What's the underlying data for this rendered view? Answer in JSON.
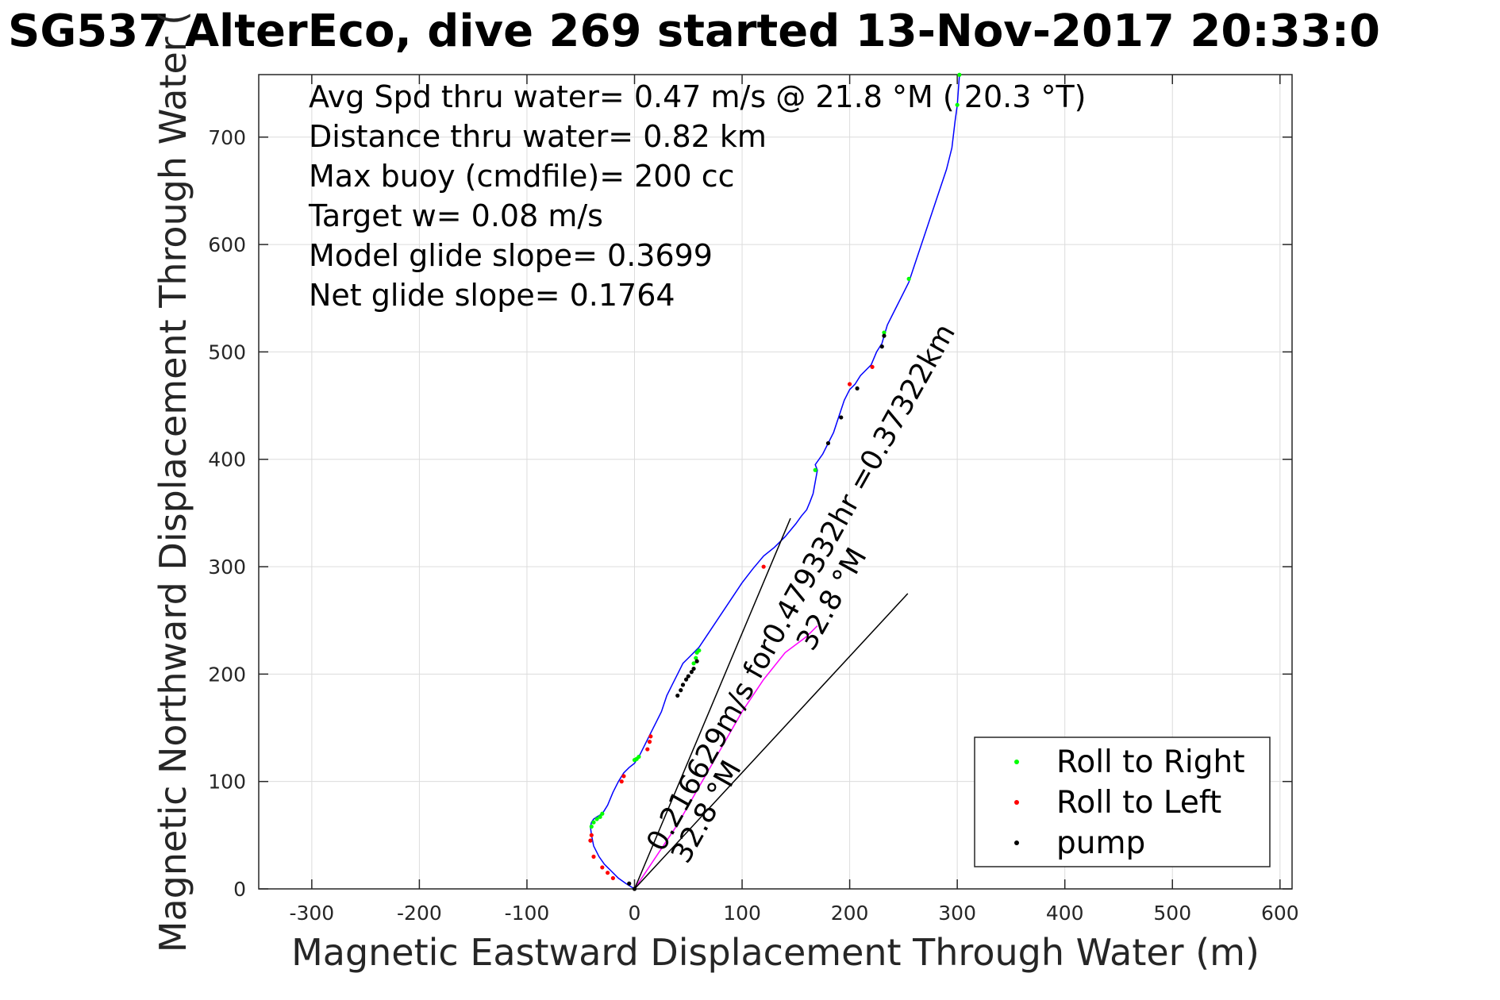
{
  "chart_data": {
    "type": "line",
    "title": "SG537 AlterEco, dive 269 started 13-Nov-2017 20:33:0",
    "xlabel": "Magnetic Eastward Displacement Through Water (m)",
    "ylabel": "Magnetic Northward Displacement Through Water (",
    "xlim": [
      -350,
      612
    ],
    "ylim": [
      0,
      758
    ],
    "xticks": [
      -300,
      -200,
      -100,
      0,
      100,
      200,
      300,
      400,
      500,
      600
    ],
    "yticks": [
      0,
      100,
      200,
      300,
      400,
      500,
      600,
      700
    ],
    "grid": true,
    "legend_position": "bottom-right",
    "colors": {
      "track": "#0000ff",
      "roll_right": "#00ff00",
      "roll_left": "#ff0000",
      "pump": "#000000",
      "overlay": "#ff00ff",
      "axes": "#262626",
      "grid": "#dcdcdc"
    },
    "annotations": [
      "Avg Spd thru water=  0.47 m/s @  21.8 °M ( 20.3 °T)",
      "Distance thru water=  0.82 km",
      "Max buoy (cmdfile)= 200 cc",
      "Target w= 0.08 m/s",
      "Model glide slope= 0.3699",
      "Net glide slope= 0.1764"
    ],
    "current_labels": [
      {
        "text": "0.216629m/s for0.479332hr =0.37322km"
      },
      {
        "text": "32.8 °M"
      },
      {
        "text": "32.8 °M"
      }
    ],
    "series": [
      {
        "name": "track",
        "x": [
          0,
          -8,
          -15,
          -22,
          -28,
          -33,
          -38,
          -40,
          -41,
          -40,
          -38,
          -35,
          -30,
          -28,
          -25,
          -20,
          -15,
          -10,
          -5,
          0,
          5,
          10,
          15,
          20,
          25,
          30,
          35,
          40,
          45,
          50,
          55,
          60,
          70,
          80,
          90,
          100,
          110,
          120,
          130,
          140,
          150,
          155,
          160,
          163,
          166,
          170,
          168,
          175,
          180,
          185,
          190,
          195,
          200,
          205,
          210,
          220,
          225,
          230,
          232,
          235,
          240,
          245,
          255,
          260,
          270,
          280,
          290,
          295,
          298,
          300,
          302
        ],
        "y": [
          0,
          5,
          10,
          17,
          23,
          30,
          40,
          50,
          58,
          62,
          65,
          67,
          70,
          73,
          78,
          90,
          100,
          108,
          113,
          117,
          125,
          135,
          145,
          155,
          165,
          180,
          190,
          200,
          210,
          215,
          220,
          225,
          240,
          255,
          270,
          285,
          298,
          310,
          318,
          328,
          340,
          347,
          353,
          360,
          368,
          390,
          395,
          405,
          415,
          425,
          440,
          455,
          465,
          470,
          478,
          488,
          500,
          508,
          515,
          525,
          535,
          545,
          565,
          580,
          610,
          640,
          670,
          690,
          715,
          730,
          758
        ]
      },
      {
        "name": "magenta_overlay",
        "x": [
          0,
          20,
          40,
          60,
          80,
          100,
          120,
          140,
          160,
          170
        ],
        "y": [
          0,
          30,
          60,
          95,
          130,
          165,
          195,
          220,
          235,
          245
        ]
      },
      {
        "name": "current_line_1",
        "x": [
          0,
          145
        ],
        "y": [
          0,
          345
        ]
      },
      {
        "name": "current_line_2",
        "x": [
          0,
          254
        ],
        "y": [
          0,
          275
        ]
      }
    ],
    "scatter": [
      {
        "name": "Roll to Right",
        "x": [
          -40,
          -38,
          -35,
          -32,
          -30,
          0,
          2,
          4,
          55,
          57,
          58,
          60,
          168,
          232,
          300,
          302,
          255
        ],
        "y": [
          58,
          62,
          65,
          67,
          70,
          120,
          121,
          123,
          210,
          215,
          220,
          222,
          390,
          518,
          730,
          758,
          568
        ]
      },
      {
        "name": "Roll to Left",
        "x": [
          -41,
          -40,
          -38,
          -30,
          -25,
          -20,
          -12,
          -10,
          12,
          14,
          15,
          120,
          221,
          200
        ],
        "y": [
          45,
          50,
          30,
          20,
          15,
          10,
          100,
          105,
          130,
          137,
          142,
          300,
          486,
          470
        ]
      },
      {
        "name": "pump",
        "x": [
          -5,
          0,
          40,
          43,
          45,
          48,
          50,
          53,
          55,
          58,
          180,
          192,
          207,
          230,
          232
        ],
        "y": [
          5,
          0,
          180,
          185,
          190,
          195,
          198,
          202,
          205,
          212,
          415,
          439,
          466,
          505,
          515
        ]
      }
    ]
  }
}
